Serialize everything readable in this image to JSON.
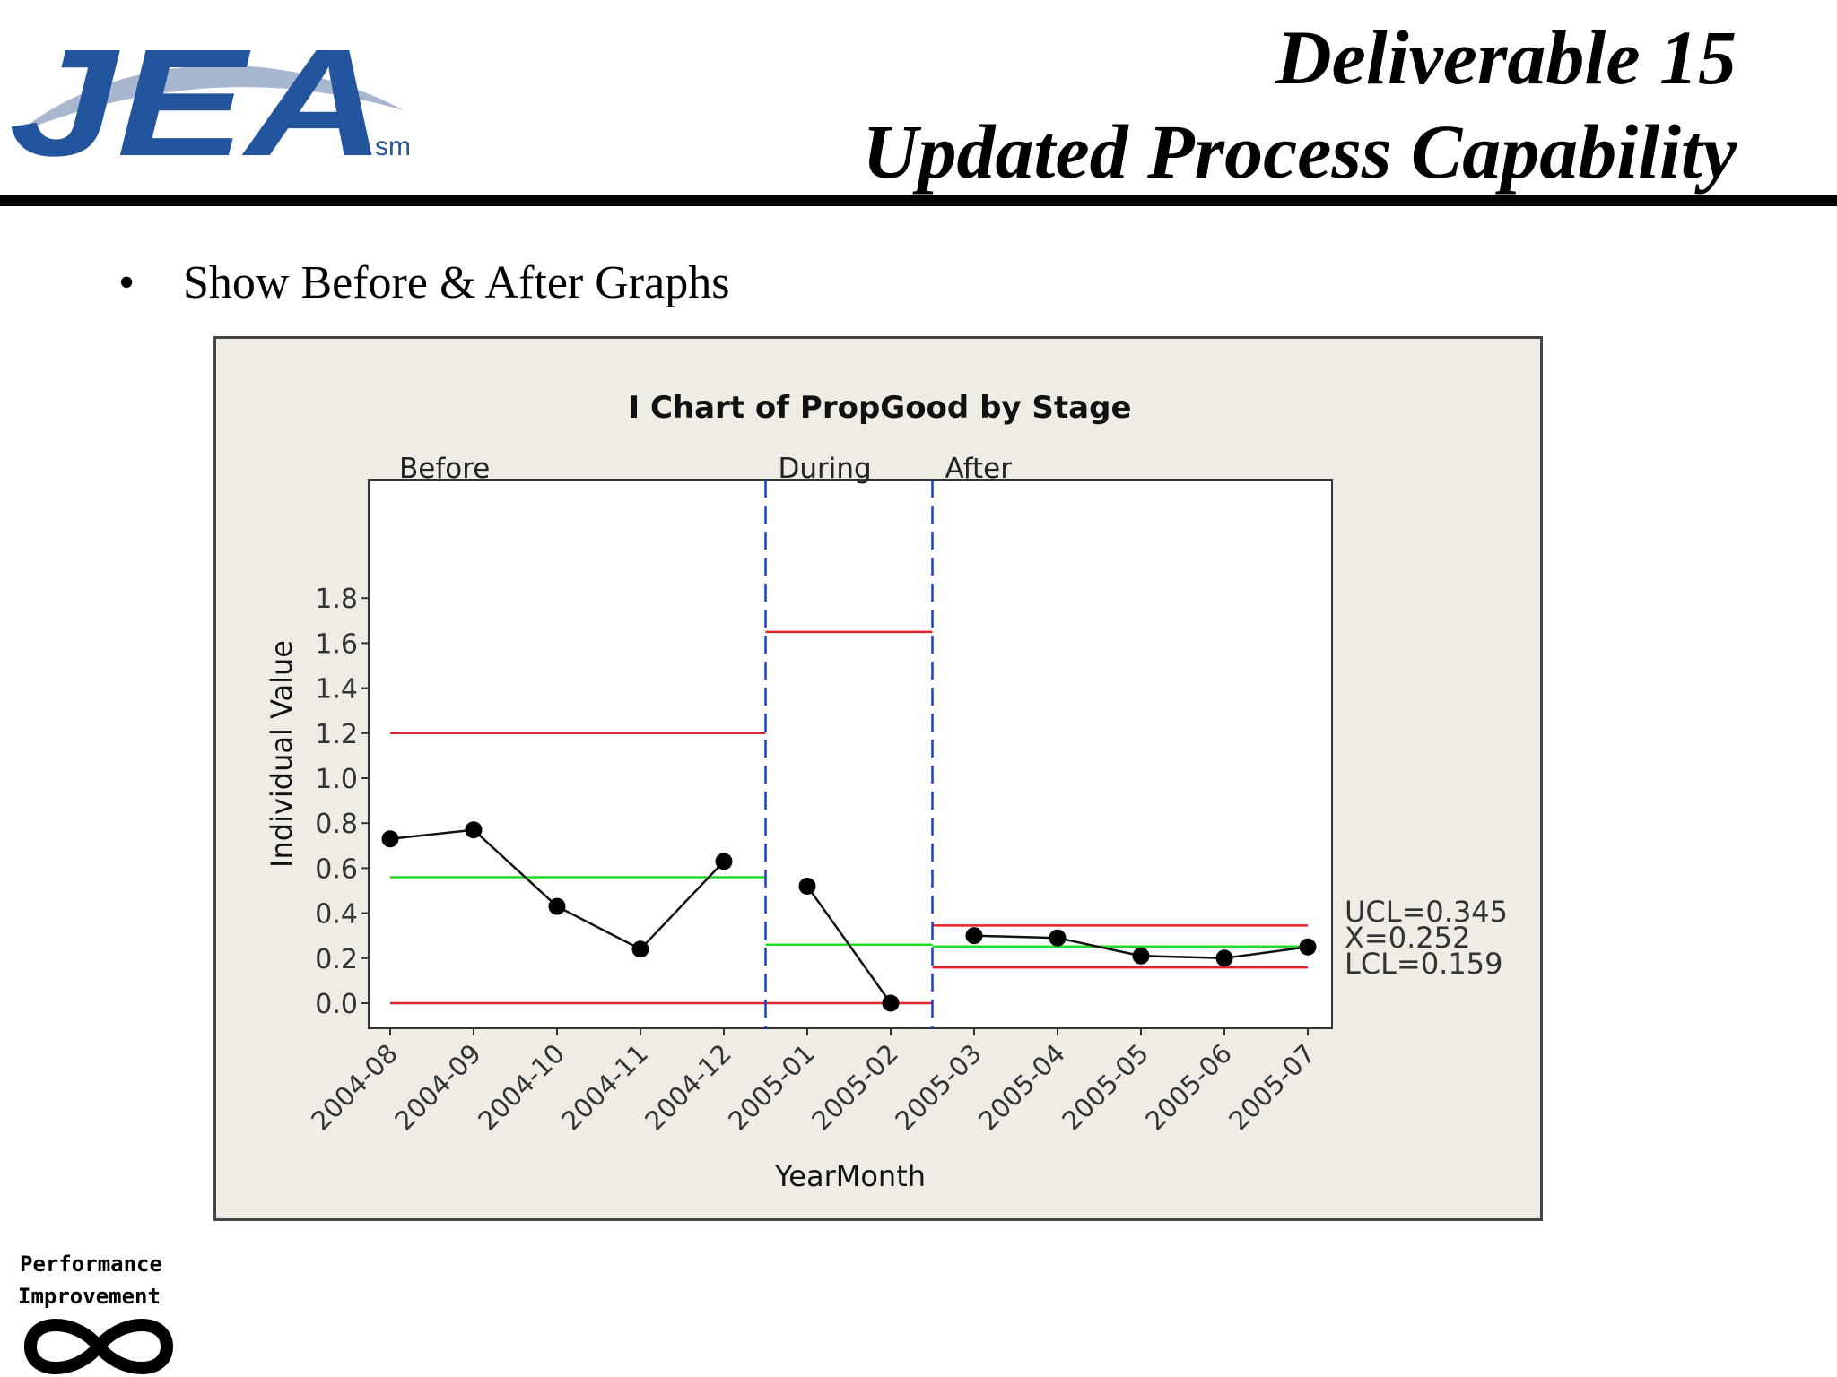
{
  "logo": {
    "text": "JEA",
    "mark": "sm"
  },
  "slide": {
    "title_line1": "Deliverable 15",
    "title_line2": "Updated Process Capability",
    "bullet": "Show Before & After Graphs"
  },
  "footer_logo": {
    "line1": "Performance",
    "line2": "Improvement",
    "icon": "infinity-icon"
  },
  "colors": {
    "limit": "#e8222a",
    "center": "#22dd22",
    "stage_divider": "#1a3fcc",
    "logo_blue": "#23559f"
  },
  "chart_data": {
    "type": "line",
    "title": "I Chart of PropGood by Stage",
    "xlabel": "YearMonth",
    "ylabel": "Individual Value",
    "ylim": [
      0,
      1.8
    ],
    "yticks": [
      "0.0",
      "0.2",
      "0.4",
      "0.6",
      "0.8",
      "1.0",
      "1.2",
      "1.4",
      "1.6",
      "1.8"
    ],
    "categories": [
      "2004-08",
      "2004-09",
      "2004-10",
      "2004-11",
      "2004-12",
      "2005-01",
      "2005-02",
      "2005-03",
      "2005-04",
      "2005-05",
      "2005-06",
      "2005-07"
    ],
    "stages": [
      {
        "name": "Before",
        "start": 0,
        "end": 4,
        "values": [
          0.73,
          0.77,
          0.43,
          0.24,
          0.63
        ],
        "ucl": 1.2,
        "center": 0.56,
        "lcl": 0.0
      },
      {
        "name": "During",
        "start": 5,
        "end": 6,
        "values": [
          0.52,
          0.0
        ],
        "ucl": 1.65,
        "center": 0.26,
        "lcl": 0.0
      },
      {
        "name": "After",
        "start": 7,
        "end": 11,
        "values": [
          0.3,
          0.29,
          0.21,
          0.2,
          0.25
        ],
        "ucl": 0.345,
        "center": 0.252,
        "lcl": 0.159
      }
    ],
    "limit_labels": [
      "UCL=0.345",
      "X=0.252",
      "LCL=0.159"
    ],
    "grid": false
  }
}
